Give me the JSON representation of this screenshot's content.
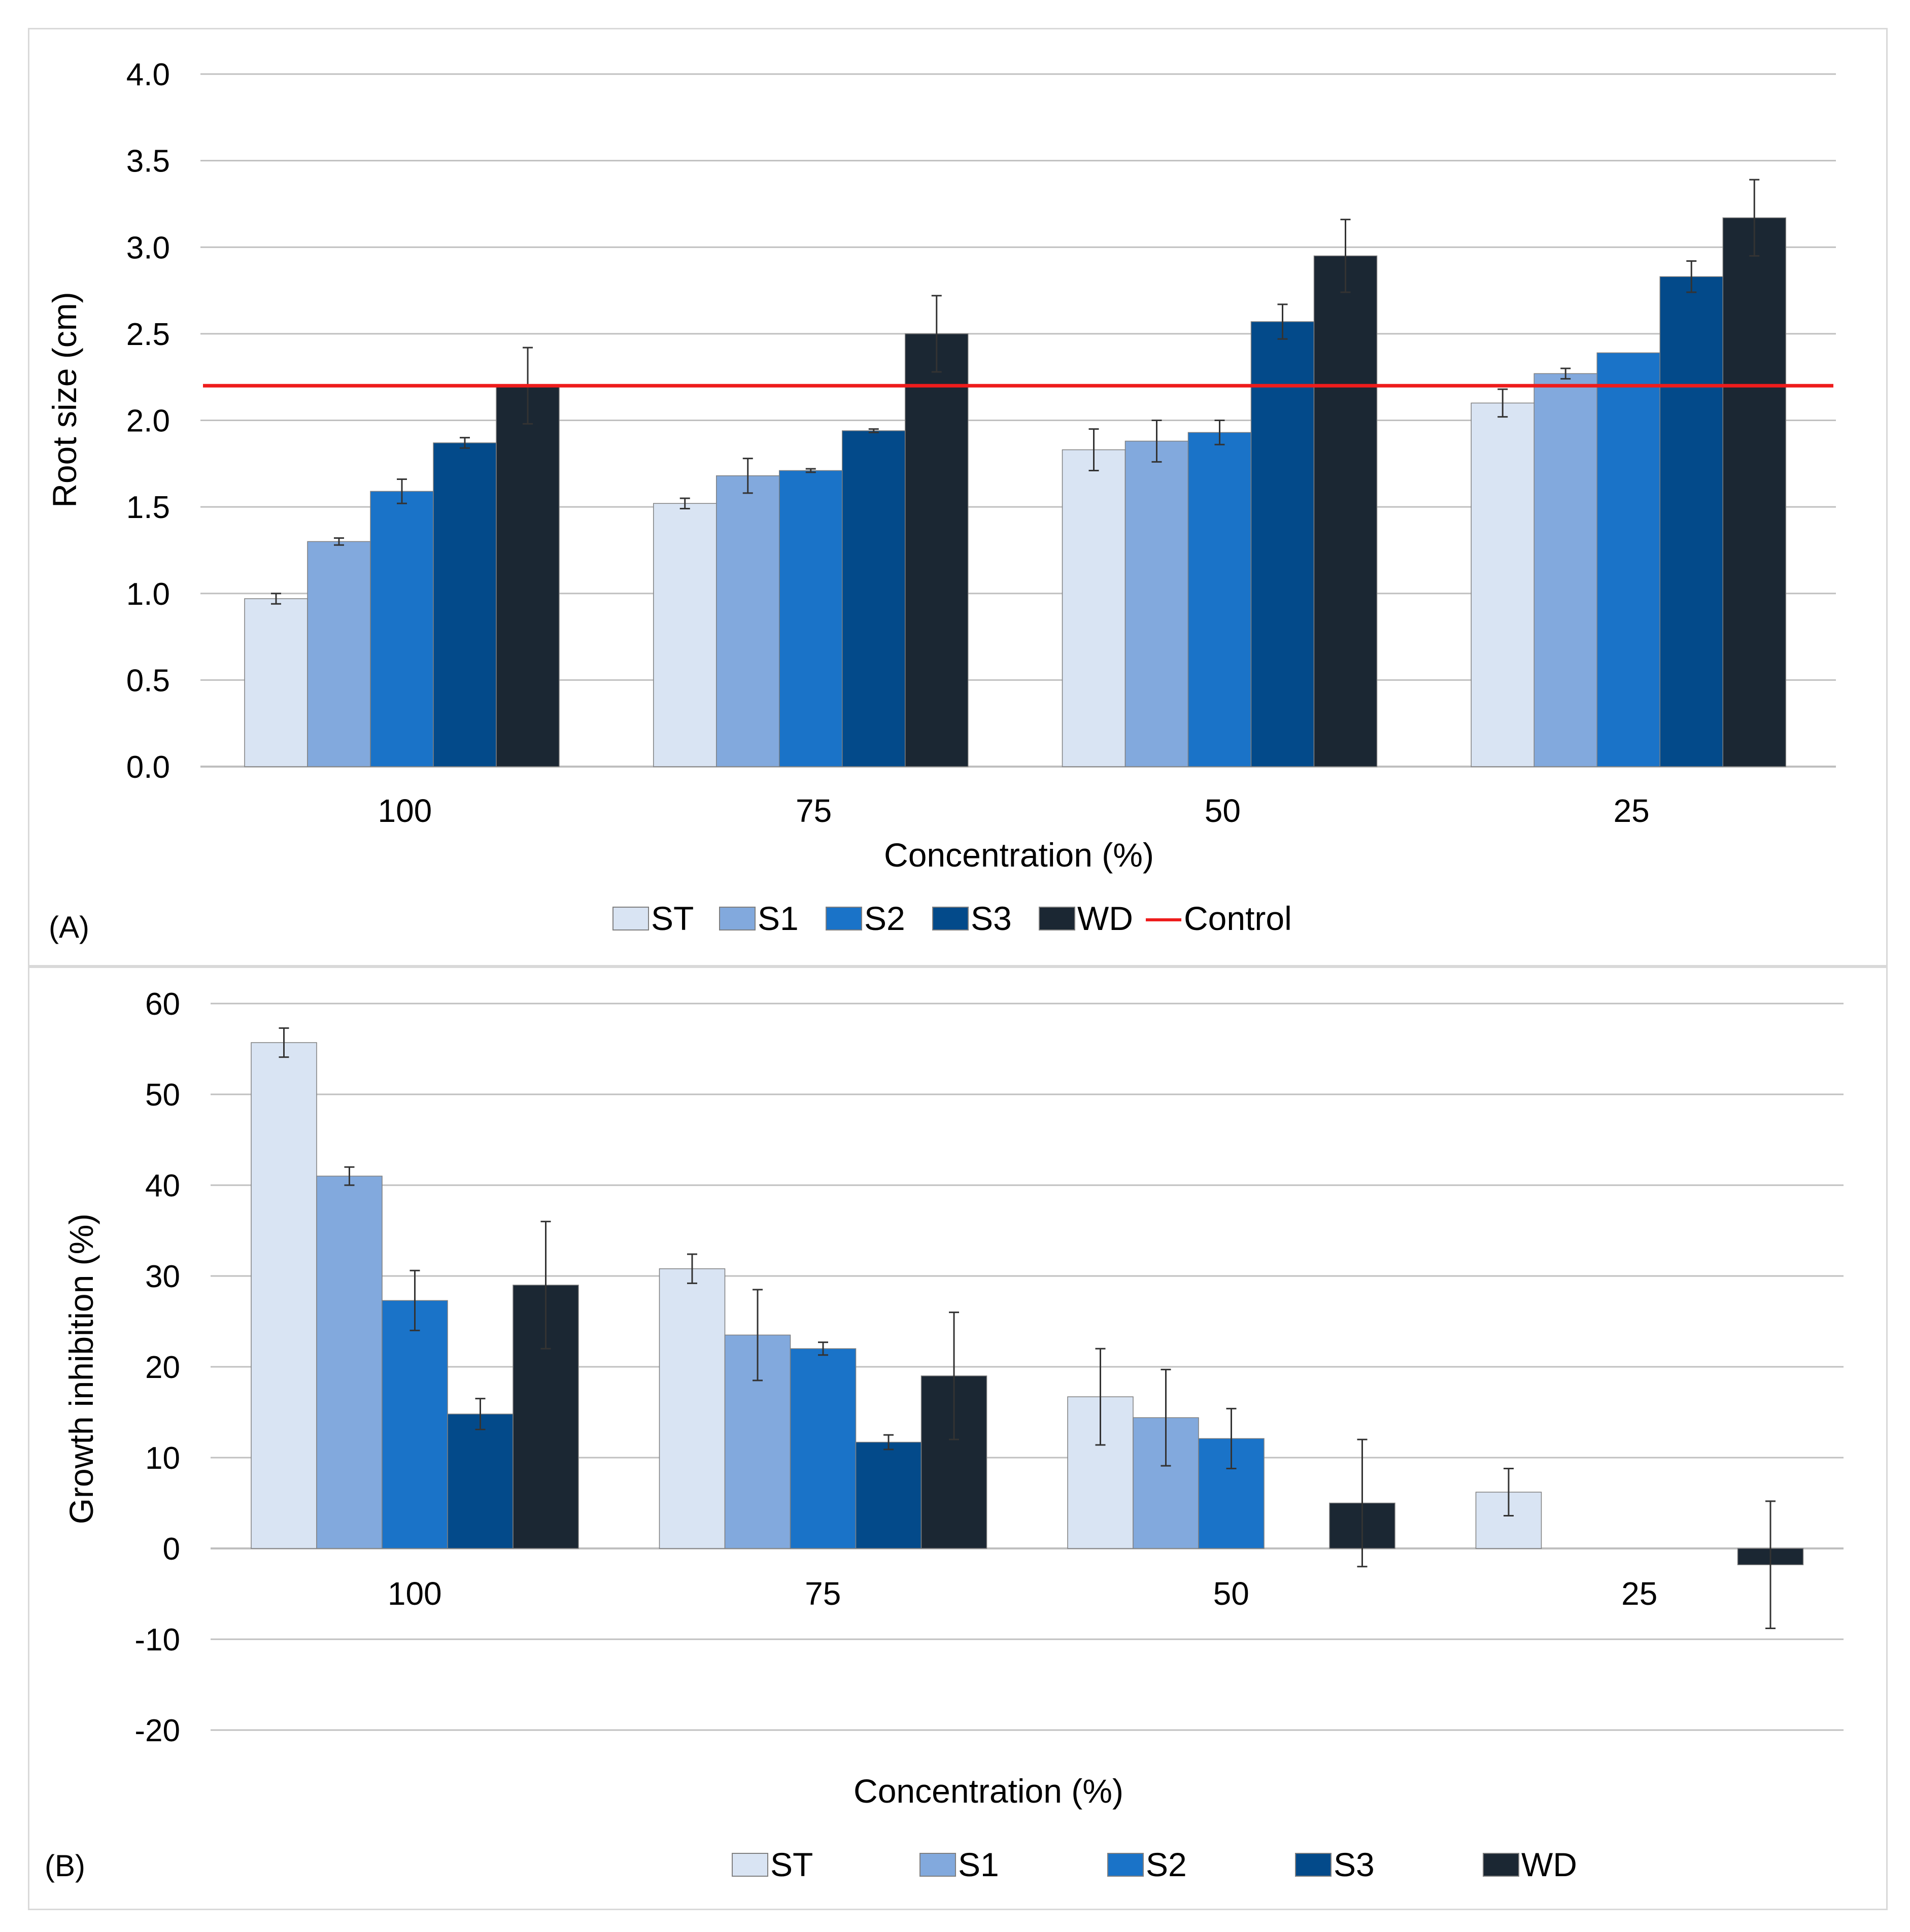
{
  "colors": {
    "ST": "#d9e4f3",
    "S1": "#82a9dd",
    "S2": "#1a73c8",
    "S3": "#034a8a",
    "WD": "#1b2733",
    "Control": "#ee1c1c",
    "grid": "#c0c0c0"
  },
  "chart_data": [
    {
      "type": "bar",
      "panel_label": "(A)",
      "title": "",
      "xlabel": "Concentration (%)",
      "ylabel": "Root size (cm)",
      "ylim": [
        0,
        4
      ],
      "yticks": [
        "0.0",
        "0.5",
        "1.0",
        "1.5",
        "2.0",
        "2.5",
        "3.0",
        "3.5",
        "4.0"
      ],
      "categories": [
        "100",
        "75",
        "50",
        "25"
      ],
      "series": [
        {
          "name": "ST",
          "values": [
            0.97,
            1.52,
            1.83,
            2.1
          ],
          "errors": [
            0.03,
            0.03,
            0.12,
            0.08
          ]
        },
        {
          "name": "S1",
          "values": [
            1.3,
            1.68,
            1.88,
            2.27
          ],
          "errors": [
            0.02,
            0.1,
            0.12,
            0.03
          ]
        },
        {
          "name": "S2",
          "values": [
            1.59,
            1.71,
            1.93,
            2.39
          ],
          "errors": [
            0.07,
            0.01,
            0.07,
            0.0
          ]
        },
        {
          "name": "S3",
          "values": [
            1.87,
            1.94,
            2.57,
            2.83
          ],
          "errors": [
            0.03,
            0.01,
            0.1,
            0.09
          ]
        },
        {
          "name": "WD",
          "values": [
            2.2,
            2.5,
            2.95,
            3.17
          ],
          "errors": [
            0.22,
            0.22,
            0.21,
            0.22
          ]
        }
      ],
      "control": {
        "name": "Control",
        "value": 2.2
      },
      "legend": [
        "ST",
        "S1",
        "S2",
        "S3",
        "WD",
        "Control"
      ],
      "legend_position": "bottom"
    },
    {
      "type": "bar",
      "panel_label": "(B)",
      "title": "",
      "xlabel": "Concentration (%)",
      "ylabel": "Growth inhibition (%)",
      "ylim": [
        -20,
        60
      ],
      "yticks": [
        "-20",
        "-10",
        "0",
        "10",
        "20",
        "30",
        "40",
        "50",
        "60"
      ],
      "categories": [
        "100",
        "75",
        "50",
        "25"
      ],
      "series": [
        {
          "name": "ST",
          "values": [
            55.7,
            30.8,
            16.7,
            6.2
          ],
          "errors": [
            1.6,
            1.6,
            5.3,
            2.6
          ]
        },
        {
          "name": "S1",
          "values": [
            41.0,
            23.5,
            14.4,
            0
          ],
          "errors": [
            1.0,
            5.0,
            5.3,
            0
          ]
        },
        {
          "name": "S2",
          "values": [
            27.3,
            22.0,
            12.1,
            0
          ],
          "errors": [
            3.3,
            0.7,
            3.3,
            0
          ]
        },
        {
          "name": "S3",
          "values": [
            14.8,
            11.7,
            0,
            0
          ],
          "errors": [
            1.7,
            0.8,
            0,
            0
          ]
        },
        {
          "name": "WD",
          "values": [
            29.0,
            19.0,
            5.0,
            -1.8
          ],
          "errors": [
            7.0,
            7.0,
            7.0,
            7.0
          ]
        }
      ],
      "legend": [
        "ST",
        "S1",
        "S2",
        "S3",
        "WD"
      ],
      "legend_position": "bottom"
    }
  ]
}
